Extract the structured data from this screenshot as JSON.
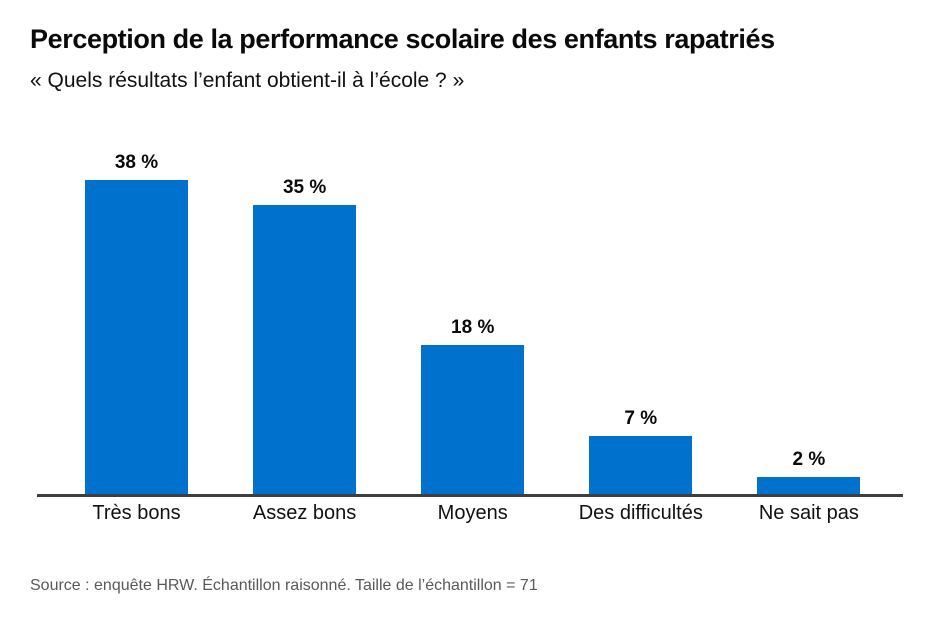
{
  "chart_data": {
    "type": "bar",
    "title": "Perception de la performance scolaire des enfants rapatriés",
    "subtitle": "« Quels résultats l’enfant obtient-il à l’école ? »",
    "categories": [
      "Très bons",
      "Assez bons",
      "Moyens",
      "Des difficultés",
      "Ne sait pas"
    ],
    "values": [
      38,
      35,
      18,
      7,
      2
    ],
    "value_suffix": " %",
    "ylim": [
      0,
      40
    ],
    "grid": false,
    "legend": false,
    "bar_color": "#0072CE",
    "axis_color": "#3f3f3f",
    "source": "Source : enquête HRW. Échantillon raisonné. Taille de l’échantillon = 71"
  }
}
